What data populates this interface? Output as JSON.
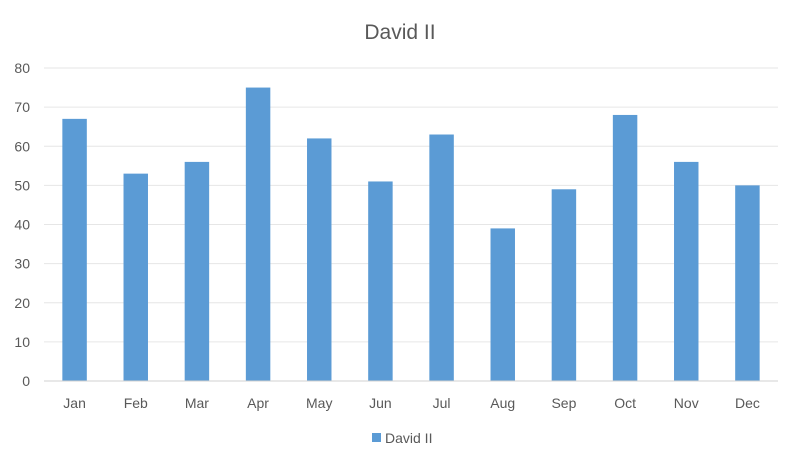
{
  "chart_data": {
    "type": "bar",
    "title": "David II",
    "xlabel": "",
    "ylabel": "",
    "categories": [
      "Jan",
      "Feb",
      "Mar",
      "Apr",
      "May",
      "Jun",
      "Jul",
      "Aug",
      "Sep",
      "Oct",
      "Nov",
      "Dec"
    ],
    "series": [
      {
        "name": "David II",
        "values": [
          67,
          53,
          56,
          75,
          62,
          51,
          63,
          39,
          49,
          68,
          56,
          50
        ],
        "color": "#5b9bd5"
      }
    ],
    "ylim": [
      0,
      80
    ],
    "yticks": [
      0,
      10,
      20,
      30,
      40,
      50,
      60,
      70,
      80
    ],
    "grid": true,
    "legend_position": "bottom"
  }
}
